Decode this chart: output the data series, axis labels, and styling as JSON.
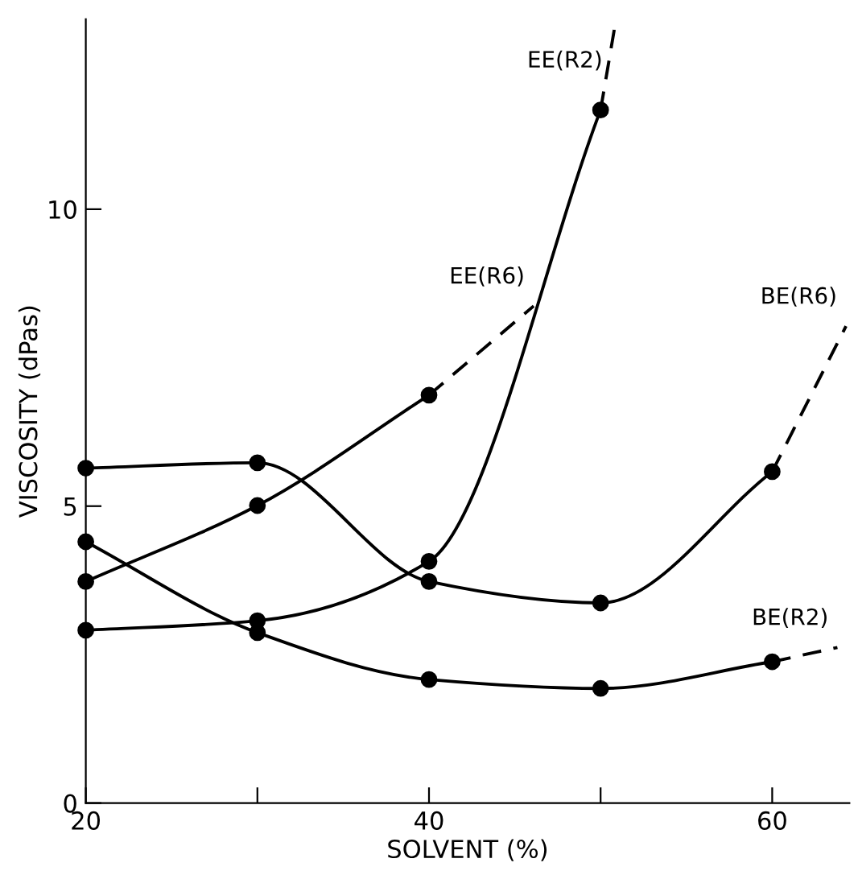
{
  "chart_data": {
    "type": "line",
    "xlabel": "SOLVENT (%)",
    "ylabel": "VISCOSITY (dPas)",
    "xlim": [
      20,
      64.5
    ],
    "ylim": [
      0,
      13.2
    ],
    "xticks": [
      20,
      {
        "value": 30,
        "label": null
      },
      40,
      {
        "value": 50,
        "label": null
      },
      60
    ],
    "yticks": [
      0,
      5,
      10
    ],
    "grid": false,
    "legend": false,
    "series": [
      {
        "color": "#000000",
        "marker": "circle",
        "line_style": "solid",
        "x": [
          20,
          30,
          40,
          50
        ],
        "values": [
          2.91,
          3.07,
          4.07,
          11.67
        ]
      },
      {
        "name": "EE(R2)",
        "color": "#000000",
        "marker": "none",
        "line_style": "dashed",
        "x": [
          50,
          50.9
        ],
        "values": [
          11.67,
          13.2
        ]
      },
      {
        "color": "#000000",
        "marker": "circle",
        "line_style": "solid",
        "x": [
          20,
          30,
          40
        ],
        "values": [
          3.73,
          5.01,
          6.87
        ]
      },
      {
        "name": "EE(R6)",
        "color": "#000000",
        "marker": "none",
        "line_style": "dashed",
        "x": [
          40,
          46.1
        ],
        "values": [
          6.87,
          8.37
        ]
      },
      {
        "color": "#000000",
        "marker": "circle",
        "line_style": "solid",
        "x": [
          20,
          30,
          40,
          50,
          60
        ],
        "values": [
          5.64,
          5.73,
          3.73,
          3.37,
          5.58
        ]
      },
      {
        "name": "BE(R6)",
        "color": "#000000",
        "marker": "none",
        "line_style": "dashed",
        "x": [
          60,
          64.3
        ],
        "values": [
          5.58,
          8.03
        ]
      },
      {
        "color": "#000000",
        "marker": "circle",
        "line_style": "solid",
        "x": [
          20,
          30,
          40,
          50,
          60
        ],
        "values": [
          4.4,
          2.87,
          2.08,
          1.93,
          2.38
        ]
      },
      {
        "name": "BE(R2)",
        "color": "#000000",
        "marker": "none",
        "line_style": "dashed",
        "x": [
          60,
          63.8
        ],
        "values": [
          2.38,
          2.62
        ]
      }
    ]
  }
}
